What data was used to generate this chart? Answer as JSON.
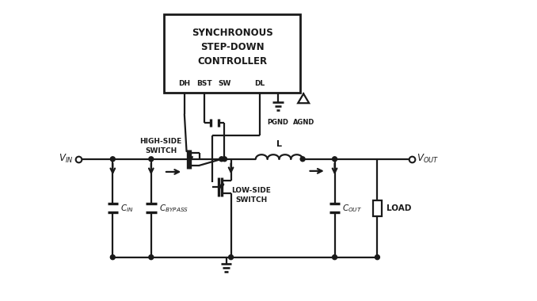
{
  "bg_color": "#ffffff",
  "line_color": "#1a1a1a",
  "text_color": "#1a1a1a",
  "lw": 1.6,
  "fig_width": 6.78,
  "fig_height": 3.8,
  "controller_label": "SYNCHRONOUS\nSTEP-DOWN\nCONTROLLER",
  "pin_labels": [
    "DH",
    "BST",
    "SW",
    "DL"
  ],
  "pgnd_label": "PGND",
  "agnd_label": "AGND",
  "vin_label": "$V_{IN}$",
  "vout_label": "$V_{OUT}$",
  "cin_label": "$C_{IN}$",
  "cbypass_label": "$C_{BYPASS}$",
  "cout_label": "$C_{OUT}$",
  "l_label": "L",
  "load_label": "LOAD",
  "hs_label": "HIGH-SIDE\nSWITCH",
  "ls_label": "LOW-SIDE\nSWITCH",
  "font_size": 8.0,
  "xlim": [
    0,
    10
  ],
  "ylim": [
    0,
    7.0
  ]
}
